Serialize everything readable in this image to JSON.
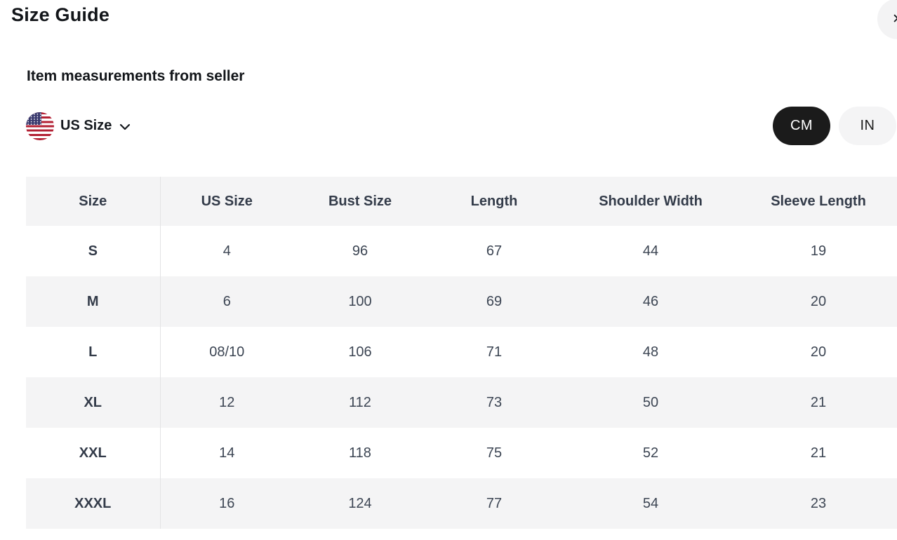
{
  "page": {
    "title": "Size Guide"
  },
  "header": {
    "close_icon": "✕"
  },
  "section": {
    "subtitle": "Item measurements from seller"
  },
  "region_selector": {
    "label": "US Size",
    "flag_icon": "us-flag"
  },
  "unit_toggle": {
    "options": [
      {
        "label": "CM",
        "selected": true
      },
      {
        "label": "IN",
        "selected": false
      }
    ]
  },
  "table": {
    "columns": [
      "Size",
      "US Size",
      "Bust Size",
      "Length",
      "Shoulder Width",
      "Sleeve Length"
    ],
    "rows": [
      [
        "S",
        "4",
        "96",
        "67",
        "44",
        "19"
      ],
      [
        "M",
        "6",
        "100",
        "69",
        "46",
        "20"
      ],
      [
        "L",
        "08/10",
        "106",
        "71",
        "48",
        "20"
      ],
      [
        "XL",
        "12",
        "112",
        "73",
        "50",
        "21"
      ],
      [
        "XXL",
        "14",
        "118",
        "75",
        "52",
        "21"
      ],
      [
        "XXXL",
        "16",
        "124",
        "77",
        "54",
        "23"
      ]
    ]
  },
  "colors": {
    "selected_pill_bg": "#1b1b1b",
    "selected_pill_text": "#ffffff",
    "unselected_pill_bg": "#f4f4f5",
    "table_stripe_bg": "#f4f4f5",
    "table_header_text": "#333b49",
    "table_body_text": "#3c4553",
    "flag_red": "#b32134",
    "flag_blue": "#3a3a6e"
  }
}
